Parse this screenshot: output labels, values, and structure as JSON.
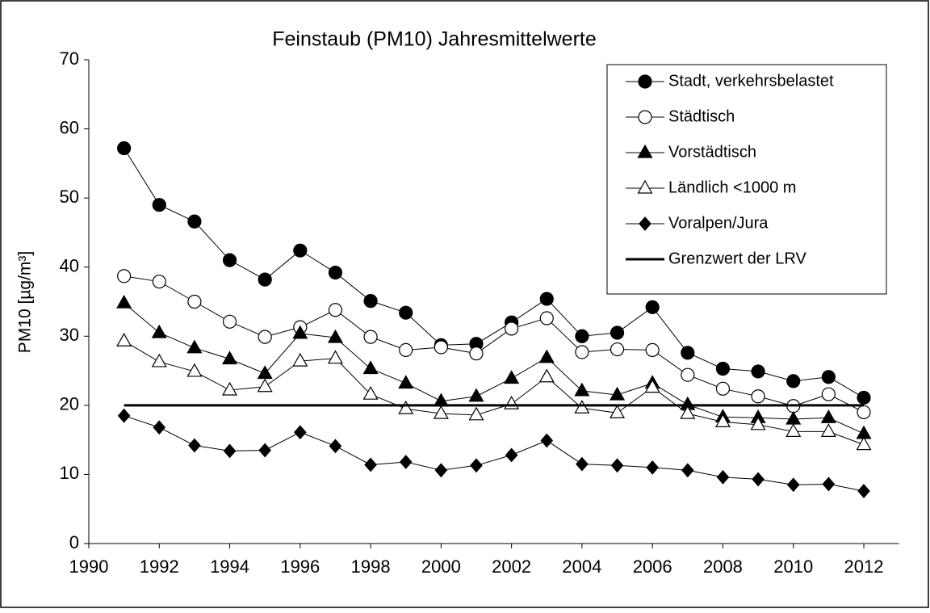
{
  "chart_data": {
    "type": "line",
    "title": "Feinstaub (PM10) Jahresmittelwerte",
    "y_label": "PM10 [µg/m³]",
    "x": [
      1991,
      1992,
      1993,
      1994,
      1995,
      1996,
      1997,
      1998,
      1999,
      2000,
      2001,
      2002,
      2003,
      2004,
      2005,
      2006,
      2007,
      2008,
      2009,
      2010,
      2011,
      2012
    ],
    "xlim": [
      1990,
      2013
    ],
    "xticks": [
      1990,
      1992,
      1994,
      1996,
      1998,
      2000,
      2002,
      2004,
      2006,
      2008,
      2010,
      2012
    ],
    "ylim": [
      0,
      70
    ],
    "yticks": [
      0,
      10,
      20,
      30,
      40,
      50,
      60,
      70
    ],
    "legend": "upper right",
    "series": [
      {
        "name": "Stadt, verkehrsbelastet",
        "color": "#000000",
        "marker": "circle",
        "filled": true,
        "values": [
          57.2,
          49,
          46.6,
          41,
          38.2,
          42.4,
          39.2,
          35.1,
          33.4,
          28.7,
          28.9,
          32,
          35.4,
          30,
          30.5,
          34.2,
          27.6,
          25.3,
          24.9,
          23.5,
          24.1,
          21.1
        ]
      },
      {
        "name": "Städtisch",
        "color": "#000000",
        "marker": "circle",
        "filled": false,
        "values": [
          38.7,
          37.9,
          35,
          32.1,
          29.9,
          31.3,
          33.8,
          29.9,
          28,
          28.4,
          27.5,
          31.1,
          32.6,
          27.7,
          28.1,
          28,
          24.4,
          22.4,
          21.3,
          19.9,
          21.6,
          19
        ]
      },
      {
        "name": "Vorstädtisch",
        "color": "#000000",
        "marker": "triangle",
        "filled": true,
        "values": [
          34.8,
          30.5,
          28.3,
          26.7,
          24.6,
          30.4,
          29.8,
          25.3,
          23.2,
          20.6,
          21.3,
          23.9,
          26.9,
          22.1,
          21.5,
          23.2,
          20.1,
          18.3,
          18.2,
          18,
          18.2,
          15.9
        ]
      },
      {
        "name": "Ländlich <1000 m",
        "color": "#000000",
        "marker": "triangle",
        "filled": false,
        "values": [
          29.3,
          26.3,
          24.9,
          22.2,
          22.7,
          26.4,
          26.8,
          21.6,
          19.5,
          18.8,
          18.6,
          20.2,
          24.1,
          19.6,
          18.9,
          22.6,
          18.8,
          17.6,
          17.2,
          16.2,
          16.2,
          14.3
        ]
      },
      {
        "name": "Voralpen/Jura",
        "color": "#000000",
        "marker": "diamond",
        "filled": true,
        "values": [
          18.5,
          16.8,
          14.2,
          13.4,
          13.5,
          16.1,
          14.1,
          11.4,
          11.8,
          10.6,
          11.3,
          12.8,
          14.9,
          11.5,
          11.3,
          11,
          10.6,
          9.6,
          9.3,
          8.5,
          8.6,
          7.6
        ]
      },
      {
        "name": "Grenzwert der LRV",
        "color": "#000000",
        "marker": "none",
        "filled": false,
        "line_width": 3,
        "values": [
          20,
          20,
          20,
          20,
          20,
          20,
          20,
          20,
          20,
          20,
          20,
          20,
          20,
          20,
          20,
          20,
          20,
          20,
          20,
          20,
          20,
          20
        ]
      }
    ]
  }
}
